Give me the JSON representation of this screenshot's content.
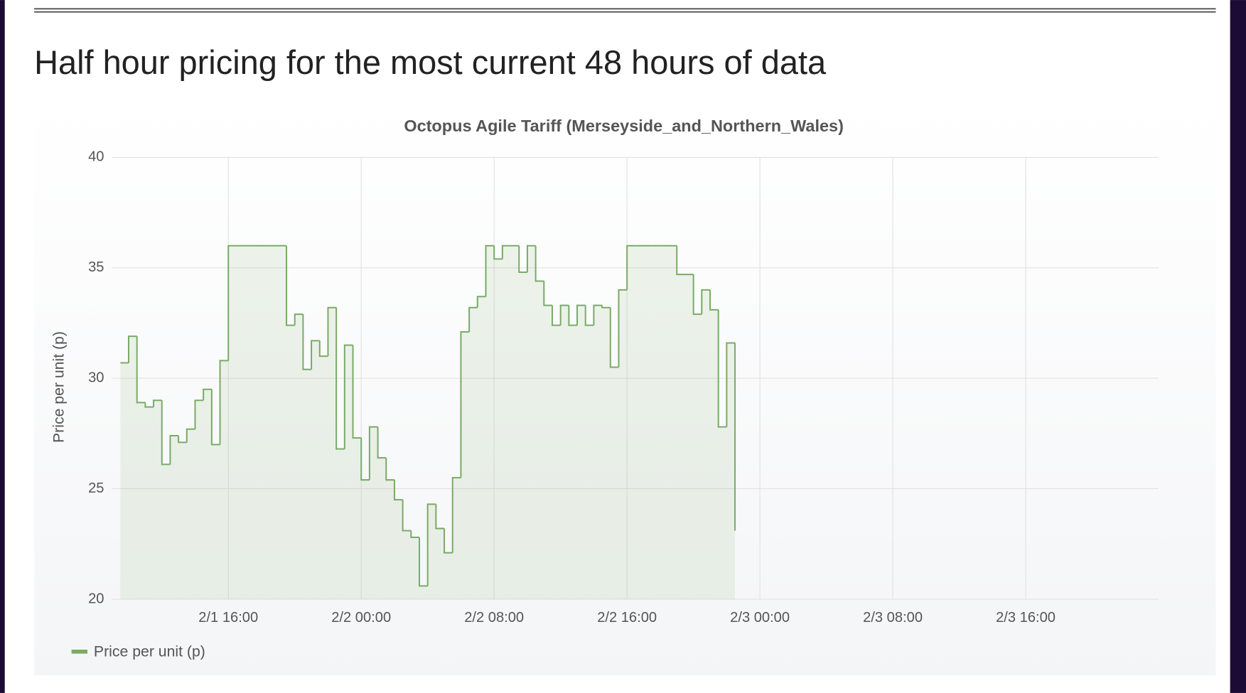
{
  "header": {
    "title": "Half hour pricing for the most current 48 hours of data"
  },
  "chart_data": {
    "type": "step-area",
    "title": "Octopus Agile Tariff (Merseyside_and_Northern_Wales)",
    "y_label": "Price per unit (p)",
    "xlim": [
      "2/1 09:00",
      "2/4 00:00"
    ],
    "xticks": [
      "2/1 16:00",
      "2/2 00:00",
      "2/2 08:00",
      "2/2 16:00",
      "2/3 00:00",
      "2/3 08:00",
      "2/3 16:00"
    ],
    "ylim": [
      20,
      40
    ],
    "yticks": [
      20,
      25,
      30,
      35,
      40
    ],
    "grid": true,
    "legend": "bottom-left",
    "x": [
      "2/1 09:30",
      "2/1 10:00",
      "2/1 10:30",
      "2/1 11:00",
      "2/1 11:30",
      "2/1 12:00",
      "2/1 12:30",
      "2/1 13:00",
      "2/1 13:30",
      "2/1 14:00",
      "2/1 14:30",
      "2/1 15:00",
      "2/1 15:30",
      "2/1 16:00",
      "2/1 16:30",
      "2/1 17:00",
      "2/1 17:30",
      "2/1 18:00",
      "2/1 18:30",
      "2/1 19:00",
      "2/1 19:30",
      "2/1 20:00",
      "2/1 20:30",
      "2/1 21:00",
      "2/1 21:30",
      "2/1 22:00",
      "2/1 22:30",
      "2/1 23:00",
      "2/1 23:30",
      "2/2 00:00",
      "2/2 00:30",
      "2/2 01:00",
      "2/2 01:30",
      "2/2 02:00",
      "2/2 02:30",
      "2/2 03:00",
      "2/2 03:30",
      "2/2 04:00",
      "2/2 04:30",
      "2/2 05:00",
      "2/2 05:30",
      "2/2 06:00",
      "2/2 06:30",
      "2/2 07:00",
      "2/2 07:30",
      "2/2 08:00",
      "2/2 08:30",
      "2/2 09:00",
      "2/2 09:30",
      "2/2 10:00",
      "2/2 10:30",
      "2/2 11:00",
      "2/2 11:30",
      "2/2 12:00",
      "2/2 12:30",
      "2/2 13:00",
      "2/2 13:30",
      "2/2 14:00",
      "2/2 14:30",
      "2/2 15:00",
      "2/2 15:30",
      "2/2 16:00",
      "2/2 16:30",
      "2/2 17:00",
      "2/2 17:30",
      "2/2 18:00",
      "2/2 18:30",
      "2/2 19:00",
      "2/2 19:30",
      "2/2 20:00",
      "2/2 20:30",
      "2/2 21:00",
      "2/2 21:30",
      "2/2 22:00",
      "2/2 22:30"
    ],
    "series": [
      {
        "name": "Price per unit (p)",
        "color": "#7aab66",
        "values": [
          30.7,
          31.9,
          28.9,
          28.7,
          29.0,
          26.1,
          27.4,
          27.1,
          27.7,
          29.0,
          29.5,
          27.0,
          30.8,
          36.0,
          36.0,
          36.0,
          36.0,
          36.0,
          36.0,
          36.0,
          32.4,
          32.9,
          30.4,
          31.7,
          31.0,
          33.2,
          26.8,
          31.5,
          27.3,
          25.4,
          27.8,
          26.4,
          25.4,
          24.5,
          23.1,
          22.8,
          20.6,
          24.3,
          23.2,
          22.1,
          25.5,
          32.1,
          33.2,
          33.7,
          36.0,
          35.4,
          36.0,
          36.0,
          34.8,
          36.0,
          34.4,
          33.3,
          32.4,
          33.3,
          32.4,
          33.3,
          32.4,
          33.3,
          33.2,
          30.5,
          34.0,
          36.0,
          36.0,
          36.0,
          36.0,
          36.0,
          36.0,
          34.7,
          34.7,
          32.9,
          34.0,
          33.1,
          27.8,
          31.6,
          23.1
        ]
      }
    ]
  }
}
